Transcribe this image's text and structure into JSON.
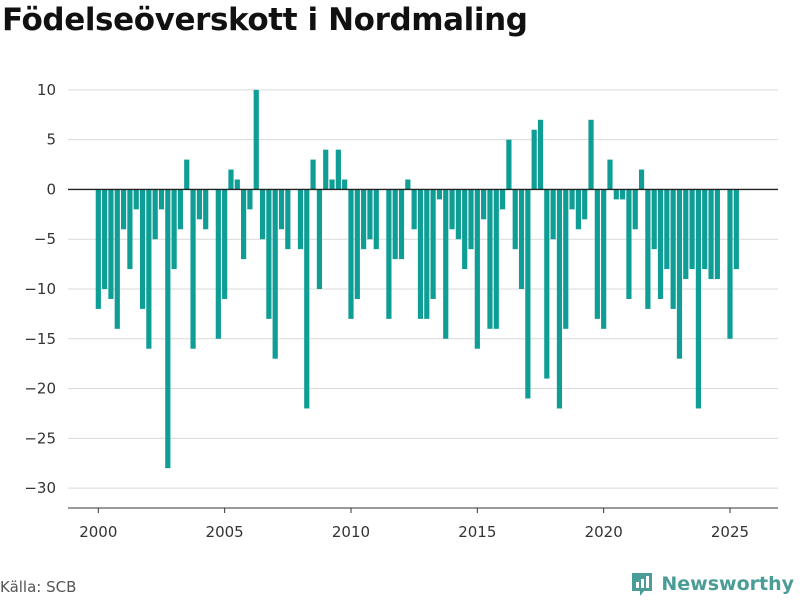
{
  "page": {
    "title": "Födelseöverskott i Nordmaling",
    "source": "Källa: SCB",
    "brand": "Newsworthy"
  },
  "colors": {
    "bar": "#0f9e96",
    "grid": "#d9d9d9",
    "zero_line": "#222222",
    "axis": "#333333",
    "brand": "#4a9d96"
  },
  "icons": {
    "brand_logo": "bar-chart-logo-icon"
  },
  "chart_data": {
    "type": "bar",
    "title": "Födelseöverskott i Nordmaling",
    "xlabel": "",
    "ylabel": "",
    "frequency": "monthly-approx",
    "start": 2000.0,
    "step": 0.25,
    "values": [
      -12,
      -10,
      -11,
      -14,
      -4,
      -8,
      -2,
      -12,
      -16,
      -5,
      -2,
      -28,
      -8,
      -4,
      3,
      -16,
      -3,
      -4,
      0,
      -15,
      -11,
      2,
      1,
      -7,
      -2,
      10,
      -5,
      -13,
      -17,
      -4,
      -6,
      0,
      -6,
      -22,
      3,
      -10,
      4,
      1,
      4,
      1,
      -13,
      -11,
      -6,
      -5,
      -6,
      0,
      -13,
      -7,
      -7,
      1,
      -4,
      -13,
      -13,
      -11,
      -1,
      -15,
      -4,
      -5,
      -8,
      -6,
      -16,
      -3,
      -14,
      -14,
      -2,
      5,
      -6,
      -10,
      -21,
      6,
      7,
      -19,
      -5,
      -22,
      -14,
      -2,
      -4,
      -3,
      7,
      -13,
      -14,
      3,
      -1,
      -1,
      -11,
      -4,
      2,
      -12,
      -6,
      -11,
      -8,
      -12,
      -17,
      -9,
      -8,
      -22,
      -8,
      -9,
      -9,
      0,
      -15,
      -8
    ],
    "ylim": [
      -32,
      12
    ],
    "xlim": [
      1998.8,
      2026.9
    ],
    "yticks": [
      10,
      5,
      0,
      -5,
      -10,
      -15,
      -20,
      -25,
      -30
    ],
    "ytick_labels": [
      "10",
      "5",
      "0",
      "−5",
      "−10",
      "−15",
      "−20",
      "−25",
      "−30"
    ],
    "xticks": [
      2000,
      2005,
      2010,
      2015,
      2020,
      2025
    ],
    "xtick_labels": [
      "2000",
      "2005",
      "2010",
      "2015",
      "2020",
      "2025"
    ],
    "grid": true,
    "legend": "none"
  }
}
